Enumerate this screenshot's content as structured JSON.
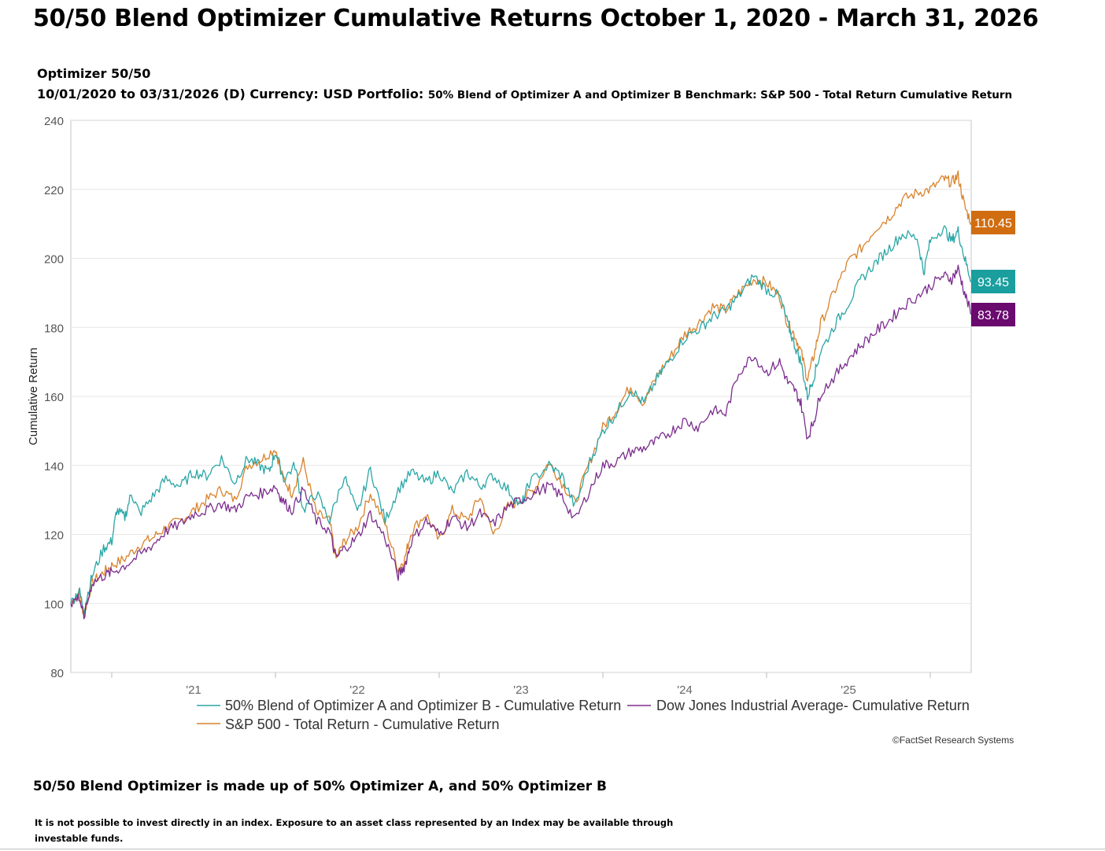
{
  "header": {
    "title": "50/50 Blend Optimizer Cumulative Returns October 1, 2020 - March 31, 2026",
    "portfolio_name": "Optimizer 50/50",
    "info_dates": "10/01/2020 to 03/31/2026 (D) Currency:  USD Portfolio:",
    "info_detail": "50% Blend of Optimizer A and Optimizer B Benchmark:  S&P 500 - Total Return Cumulative Return"
  },
  "chart_data": {
    "type": "line",
    "ylabel": "Cumulative Return",
    "xlabel": "",
    "ylim": [
      80,
      240
    ],
    "y_ticks": [
      "80",
      "100",
      "120",
      "140",
      "160",
      "180",
      "200",
      "220",
      "240"
    ],
    "x_range": [
      2020.75,
      2026.25
    ],
    "x_ticks": [
      {
        "label": "'21",
        "x": 2021.5
      },
      {
        "label": "'22",
        "x": 2022.5
      },
      {
        "label": "'23",
        "x": 2023.5
      },
      {
        "label": "'24",
        "x": 2024.5
      },
      {
        "label": "'25",
        "x": 2025.5
      }
    ],
    "x_boundaries": [
      2021.0,
      2022.0,
      2023.0,
      2024.0,
      2025.0,
      2026.0
    ],
    "grid": true,
    "legend_position": "bottom",
    "series": [
      {
        "name": "50% Blend of Optimizer A and Optimizer B - Cumulative Return",
        "color": "#2aa6a6",
        "end_label": "93.45",
        "points": [
          [
            2020.75,
            100
          ],
          [
            2020.8,
            104
          ],
          [
            2020.83,
            98
          ],
          [
            2020.88,
            108
          ],
          [
            2020.95,
            116
          ],
          [
            2021.0,
            118
          ],
          [
            2021.03,
            127
          ],
          [
            2021.08,
            125
          ],
          [
            2021.12,
            132
          ],
          [
            2021.17,
            126
          ],
          [
            2021.25,
            131
          ],
          [
            2021.33,
            136
          ],
          [
            2021.42,
            134
          ],
          [
            2021.5,
            138
          ],
          [
            2021.58,
            137
          ],
          [
            2021.67,
            142
          ],
          [
            2021.75,
            135
          ],
          [
            2021.83,
            142
          ],
          [
            2021.9,
            140
          ],
          [
            2021.96,
            138
          ],
          [
            2022.0,
            144
          ],
          [
            2022.05,
            136
          ],
          [
            2022.12,
            140
          ],
          [
            2022.17,
            127
          ],
          [
            2022.25,
            132
          ],
          [
            2022.33,
            124
          ],
          [
            2022.42,
            137
          ],
          [
            2022.5,
            126
          ],
          [
            2022.58,
            139
          ],
          [
            2022.67,
            124
          ],
          [
            2022.75,
            133
          ],
          [
            2022.83,
            138
          ],
          [
            2022.92,
            135
          ],
          [
            2023.0,
            138
          ],
          [
            2023.08,
            132
          ],
          [
            2023.17,
            138
          ],
          [
            2023.25,
            134
          ],
          [
            2023.33,
            137
          ],
          [
            2023.42,
            133
          ],
          [
            2023.5,
            128
          ],
          [
            2023.55,
            135
          ],
          [
            2023.67,
            140
          ],
          [
            2023.75,
            137
          ],
          [
            2023.83,
            128
          ],
          [
            2023.92,
            141
          ],
          [
            2024.0,
            150
          ],
          [
            2024.08,
            155
          ],
          [
            2024.17,
            162
          ],
          [
            2024.25,
            158
          ],
          [
            2024.33,
            165
          ],
          [
            2024.4,
            170
          ],
          [
            2024.5,
            177
          ],
          [
            2024.6,
            180
          ],
          [
            2024.67,
            183
          ],
          [
            2024.75,
            185
          ],
          [
            2024.83,
            189
          ],
          [
            2024.92,
            195
          ],
          [
            2025.0,
            191
          ],
          [
            2025.08,
            189
          ],
          [
            2025.13,
            181
          ],
          [
            2025.17,
            175
          ],
          [
            2025.21,
            170
          ],
          [
            2025.25,
            160
          ],
          [
            2025.29,
            166
          ],
          [
            2025.33,
            173
          ],
          [
            2025.42,
            181
          ],
          [
            2025.5,
            187
          ],
          [
            2025.58,
            194
          ],
          [
            2025.67,
            199
          ],
          [
            2025.75,
            203
          ],
          [
            2025.83,
            207
          ],
          [
            2025.92,
            206
          ],
          [
            2025.96,
            196
          ],
          [
            2026.0,
            205
          ],
          [
            2026.08,
            209
          ],
          [
            2026.13,
            205
          ],
          [
            2026.17,
            208
          ],
          [
            2026.21,
            200
          ],
          [
            2026.25,
            193.45
          ]
        ]
      },
      {
        "name": "S&P 500 - Total Return - Cumulative Return",
        "color": "#d9822b",
        "end_label": "110.45",
        "points": [
          [
            2020.75,
            100
          ],
          [
            2020.8,
            103
          ],
          [
            2020.83,
            97
          ],
          [
            2020.88,
            106
          ],
          [
            2020.95,
            109
          ],
          [
            2021.0,
            111
          ],
          [
            2021.08,
            113
          ],
          [
            2021.17,
            117
          ],
          [
            2021.25,
            119
          ],
          [
            2021.33,
            122
          ],
          [
            2021.42,
            124
          ],
          [
            2021.5,
            127
          ],
          [
            2021.58,
            130
          ],
          [
            2021.67,
            133
          ],
          [
            2021.75,
            130
          ],
          [
            2021.83,
            140
          ],
          [
            2021.92,
            142
          ],
          [
            2022.0,
            145
          ],
          [
            2022.04,
            137
          ],
          [
            2022.1,
            132
          ],
          [
            2022.17,
            141
          ],
          [
            2022.25,
            126
          ],
          [
            2022.33,
            124
          ],
          [
            2022.37,
            113
          ],
          [
            2022.42,
            118
          ],
          [
            2022.5,
            122
          ],
          [
            2022.58,
            132
          ],
          [
            2022.67,
            123
          ],
          [
            2022.75,
            110
          ],
          [
            2022.79,
            113
          ],
          [
            2022.83,
            121
          ],
          [
            2022.92,
            126
          ],
          [
            2023.0,
            118
          ],
          [
            2023.08,
            127
          ],
          [
            2023.17,
            124
          ],
          [
            2023.25,
            131
          ],
          [
            2023.33,
            120
          ],
          [
            2023.42,
            128
          ],
          [
            2023.5,
            130
          ],
          [
            2023.58,
            133
          ],
          [
            2023.67,
            141
          ],
          [
            2023.75,
            135
          ],
          [
            2023.83,
            129
          ],
          [
            2023.92,
            141
          ],
          [
            2024.0,
            151
          ],
          [
            2024.08,
            156
          ],
          [
            2024.17,
            163
          ],
          [
            2024.25,
            158
          ],
          [
            2024.33,
            166
          ],
          [
            2024.42,
            172
          ],
          [
            2024.5,
            178
          ],
          [
            2024.58,
            181
          ],
          [
            2024.67,
            186
          ],
          [
            2024.75,
            185
          ],
          [
            2024.83,
            190
          ],
          [
            2024.92,
            194
          ],
          [
            2025.0,
            193
          ],
          [
            2025.08,
            189
          ],
          [
            2025.13,
            181
          ],
          [
            2025.17,
            178
          ],
          [
            2025.21,
            173
          ],
          [
            2025.25,
            165
          ],
          [
            2025.29,
            172
          ],
          [
            2025.33,
            181
          ],
          [
            2025.42,
            191
          ],
          [
            2025.5,
            199
          ],
          [
            2025.58,
            203
          ],
          [
            2025.67,
            209
          ],
          [
            2025.75,
            212
          ],
          [
            2025.83,
            217
          ],
          [
            2025.92,
            219
          ],
          [
            2026.0,
            220
          ],
          [
            2026.08,
            223
          ],
          [
            2026.13,
            222
          ],
          [
            2026.17,
            224
          ],
          [
            2026.21,
            215
          ],
          [
            2026.25,
            210.45
          ]
        ]
      },
      {
        "name": "Dow Jones Industrial Average- Cumulative Return",
        "color": "#7b2d8e",
        "end_label": "83.78",
        "points": [
          [
            2020.75,
            100
          ],
          [
            2020.8,
            102
          ],
          [
            2020.83,
            96
          ],
          [
            2020.88,
            106
          ],
          [
            2020.95,
            108
          ],
          [
            2021.0,
            109
          ],
          [
            2021.08,
            111
          ],
          [
            2021.17,
            114
          ],
          [
            2021.25,
            117
          ],
          [
            2021.33,
            121
          ],
          [
            2021.42,
            123
          ],
          [
            2021.5,
            126
          ],
          [
            2021.58,
            127
          ],
          [
            2021.67,
            129
          ],
          [
            2021.75,
            127
          ],
          [
            2021.83,
            131
          ],
          [
            2021.92,
            132
          ],
          [
            2022.0,
            134
          ],
          [
            2022.04,
            130
          ],
          [
            2022.1,
            127
          ],
          [
            2022.17,
            133
          ],
          [
            2022.25,
            124
          ],
          [
            2022.33,
            121
          ],
          [
            2022.37,
            113
          ],
          [
            2022.42,
            116
          ],
          [
            2022.5,
            119
          ],
          [
            2022.58,
            126
          ],
          [
            2022.67,
            119
          ],
          [
            2022.75,
            108
          ],
          [
            2022.79,
            111
          ],
          [
            2022.83,
            118
          ],
          [
            2022.92,
            124
          ],
          [
            2023.0,
            120
          ],
          [
            2023.08,
            125
          ],
          [
            2023.17,
            122
          ],
          [
            2023.25,
            126
          ],
          [
            2023.33,
            123
          ],
          [
            2023.42,
            128
          ],
          [
            2023.5,
            130
          ],
          [
            2023.58,
            132
          ],
          [
            2023.67,
            134
          ],
          [
            2023.75,
            131
          ],
          [
            2023.83,
            124
          ],
          [
            2023.92,
            133
          ],
          [
            2024.0,
            140
          ],
          [
            2024.08,
            141
          ],
          [
            2024.17,
            144
          ],
          [
            2024.25,
            145
          ],
          [
            2024.33,
            147
          ],
          [
            2024.42,
            150
          ],
          [
            2024.5,
            153
          ],
          [
            2024.58,
            151
          ],
          [
            2024.67,
            156
          ],
          [
            2024.75,
            155
          ],
          [
            2024.83,
            167
          ],
          [
            2024.92,
            172
          ],
          [
            2025.0,
            167
          ],
          [
            2025.08,
            170
          ],
          [
            2025.13,
            164
          ],
          [
            2025.17,
            162
          ],
          [
            2025.21,
            158
          ],
          [
            2025.25,
            148
          ],
          [
            2025.29,
            153
          ],
          [
            2025.33,
            161
          ],
          [
            2025.42,
            166
          ],
          [
            2025.5,
            171
          ],
          [
            2025.58,
            175
          ],
          [
            2025.67,
            179
          ],
          [
            2025.75,
            182
          ],
          [
            2025.83,
            186
          ],
          [
            2025.92,
            189
          ],
          [
            2026.0,
            192
          ],
          [
            2026.08,
            195
          ],
          [
            2026.13,
            194
          ],
          [
            2026.17,
            197
          ],
          [
            2026.21,
            190
          ],
          [
            2026.25,
            183.78
          ]
        ]
      }
    ]
  },
  "legend": {
    "blend": "50% Blend of Optimizer A and Optimizer B - Cumulative Return",
    "dow": "Dow Jones Industrial Average- Cumulative Return",
    "sp": "S&P 500 - Total Return - Cumulative Return"
  },
  "footer": {
    "copyright": "©FactSet Research Systems",
    "composition": "50/50 Blend Optimizer is made up of 50% Optimizer A, and 50% Optimizer B",
    "disclaimer": "It is not possible to invest directly in an index. Exposure to an asset class represented by an Index may be available through investable funds."
  },
  "colors": {
    "blend": "#2aa6a6",
    "sp": "#d9822b",
    "dow": "#7b2d8e",
    "blend_badge": "#1a9e9e",
    "sp_badge": "#d06d10",
    "dow_badge": "#6a0a6e"
  }
}
